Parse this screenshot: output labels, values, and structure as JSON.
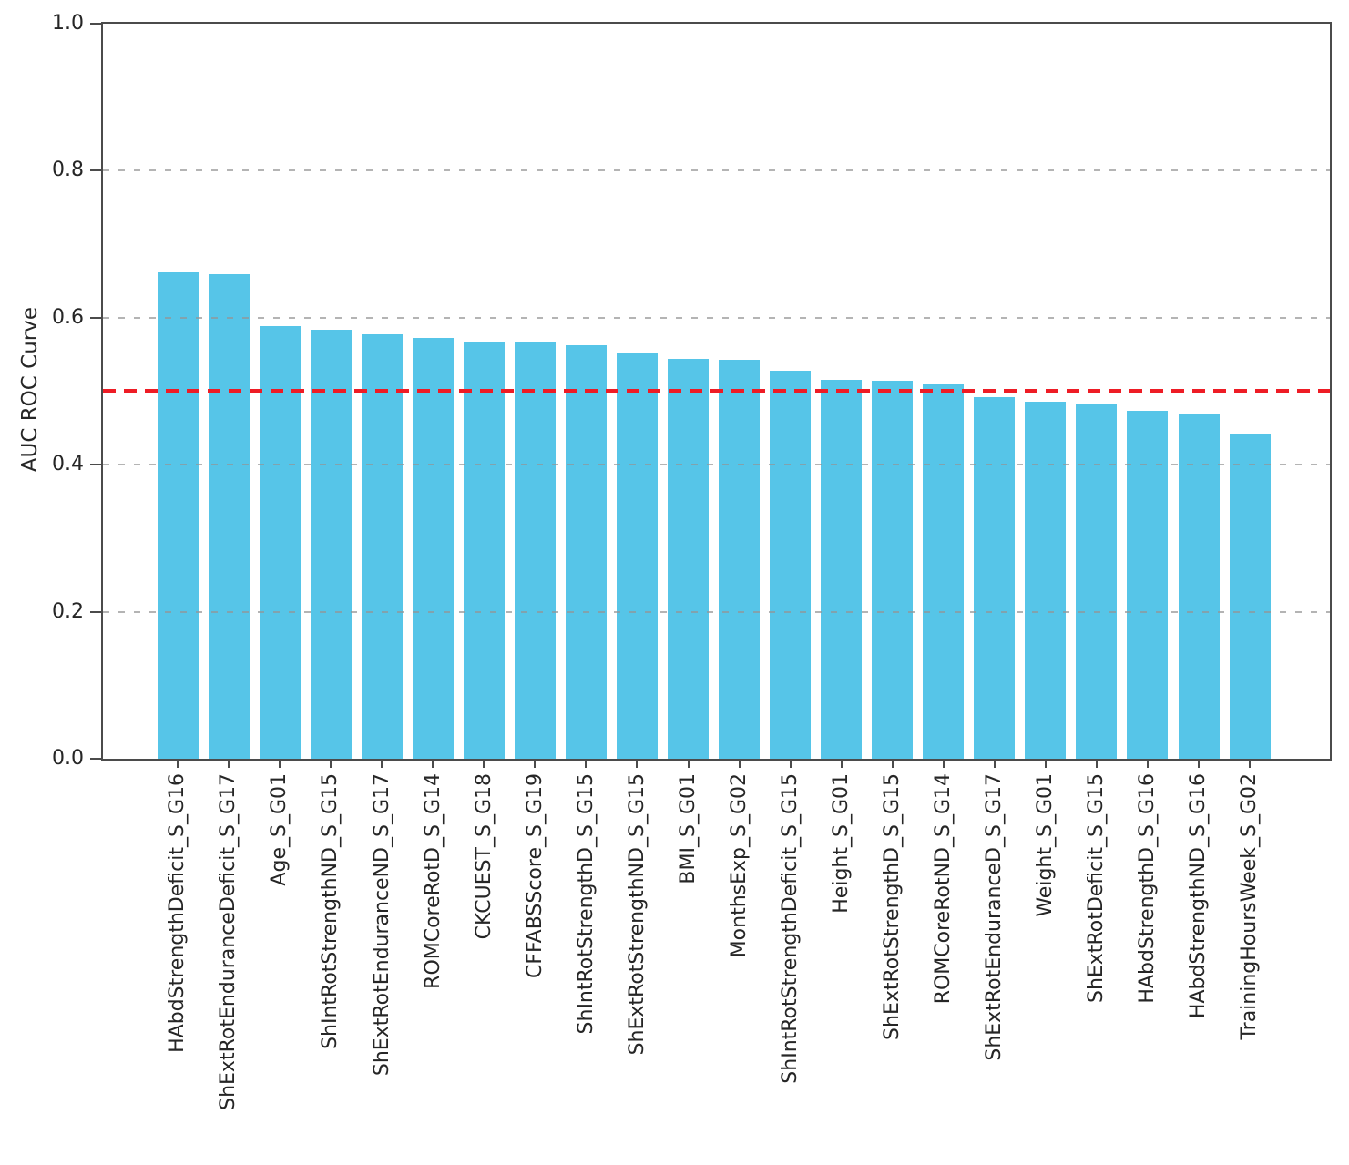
{
  "figure": {
    "background_color": "#ffffff",
    "spine_color": "#4b4b4b",
    "text_color": "#262626"
  },
  "chart_data": {
    "type": "bar",
    "title": "",
    "xlabel": "",
    "ylabel": "AUC ROC Curve",
    "ylim": [
      0.0,
      1.0
    ],
    "ytick_labels": [
      "0.0",
      "0.2",
      "0.4",
      "0.6",
      "0.8",
      "1.0"
    ],
    "yticks": [
      0.0,
      0.2,
      0.4,
      0.6,
      0.8,
      1.0
    ],
    "gridlines": [
      0.2,
      0.4,
      0.6,
      0.8
    ],
    "grid_style": "horizontal dashed gray",
    "reference_line": {
      "value": 0.5,
      "style": "dashed",
      "color": "#ee1c25"
    },
    "bar_color": "#56c5e8",
    "legend": null,
    "categories": [
      "HAbdStrengthDeficit_S_G16",
      "ShExtRotEnduranceDeficit_S_G17",
      "Age_S_G01",
      "ShIntRotStrengthND_S_G15",
      "ShExtRotEnduranceND_S_G17",
      "ROMCoreRotD_S_G14",
      "CKCUEST_S_G18",
      "CFFABSScore_S_G19",
      "ShIntRotStrengthD_S_G15",
      "ShExtRotStrengthND_S_G15",
      "BMI_S_G01",
      "MonthsExp_S_G02",
      "ShIntRotStrengthDeficit_S_G15",
      "Height_S_G01",
      "ShExtRotStrengthD_S_G15",
      "ROMCoreRotND_S_G14",
      "ShExtRotEnduranceD_S_G17",
      "Weight_S_G01",
      "ShExtRotDeficit_S_G15",
      "HAbdStrengthD_S_G16",
      "HAbdStrengthND_S_G16",
      "TrainingHoursWeek_S_G02"
    ],
    "values": [
      0.662,
      0.659,
      0.588,
      0.584,
      0.578,
      0.572,
      0.567,
      0.566,
      0.563,
      0.551,
      0.544,
      0.543,
      0.528,
      0.516,
      0.514,
      0.509,
      0.492,
      0.486,
      0.483,
      0.473,
      0.47,
      0.442
    ]
  }
}
